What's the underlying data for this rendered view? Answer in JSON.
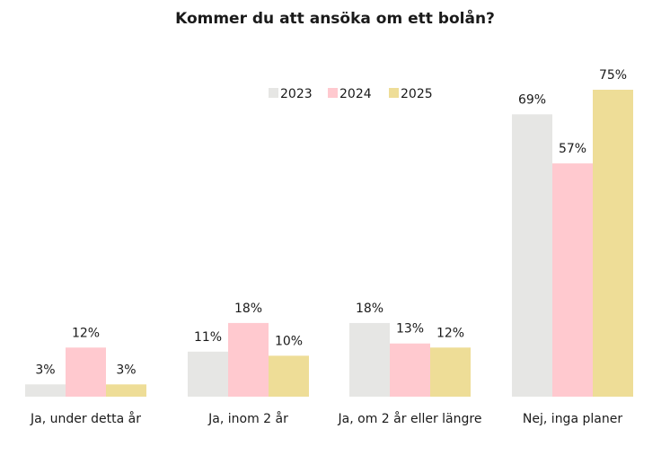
{
  "chart_data": {
    "type": "bar",
    "title": "Kommer du att ansöka om ett bolån?",
    "categories": [
      "Ja, under detta år",
      "Ja, inom 2 år",
      "Ja, om 2 år eller längre",
      "Nej, inga planer"
    ],
    "series": [
      {
        "name": "2023",
        "color": "#e6e6e4",
        "values": [
          3,
          11,
          18,
          69
        ],
        "labels": [
          "3%",
          "11%",
          "18%",
          "69%"
        ]
      },
      {
        "name": "2024",
        "color": "#ffc9cf",
        "values": [
          12,
          18,
          13,
          57
        ],
        "labels": [
          "12%",
          "18%",
          "13%",
          "57%"
        ]
      },
      {
        "name": "2025",
        "color": "#eedd97",
        "values": [
          3,
          10,
          12,
          75
        ],
        "labels": [
          "3%",
          "10%",
          "12%",
          "75%"
        ]
      }
    ],
    "ylim": [
      0,
      75
    ],
    "legend_position": "top-center",
    "grid": false
  }
}
